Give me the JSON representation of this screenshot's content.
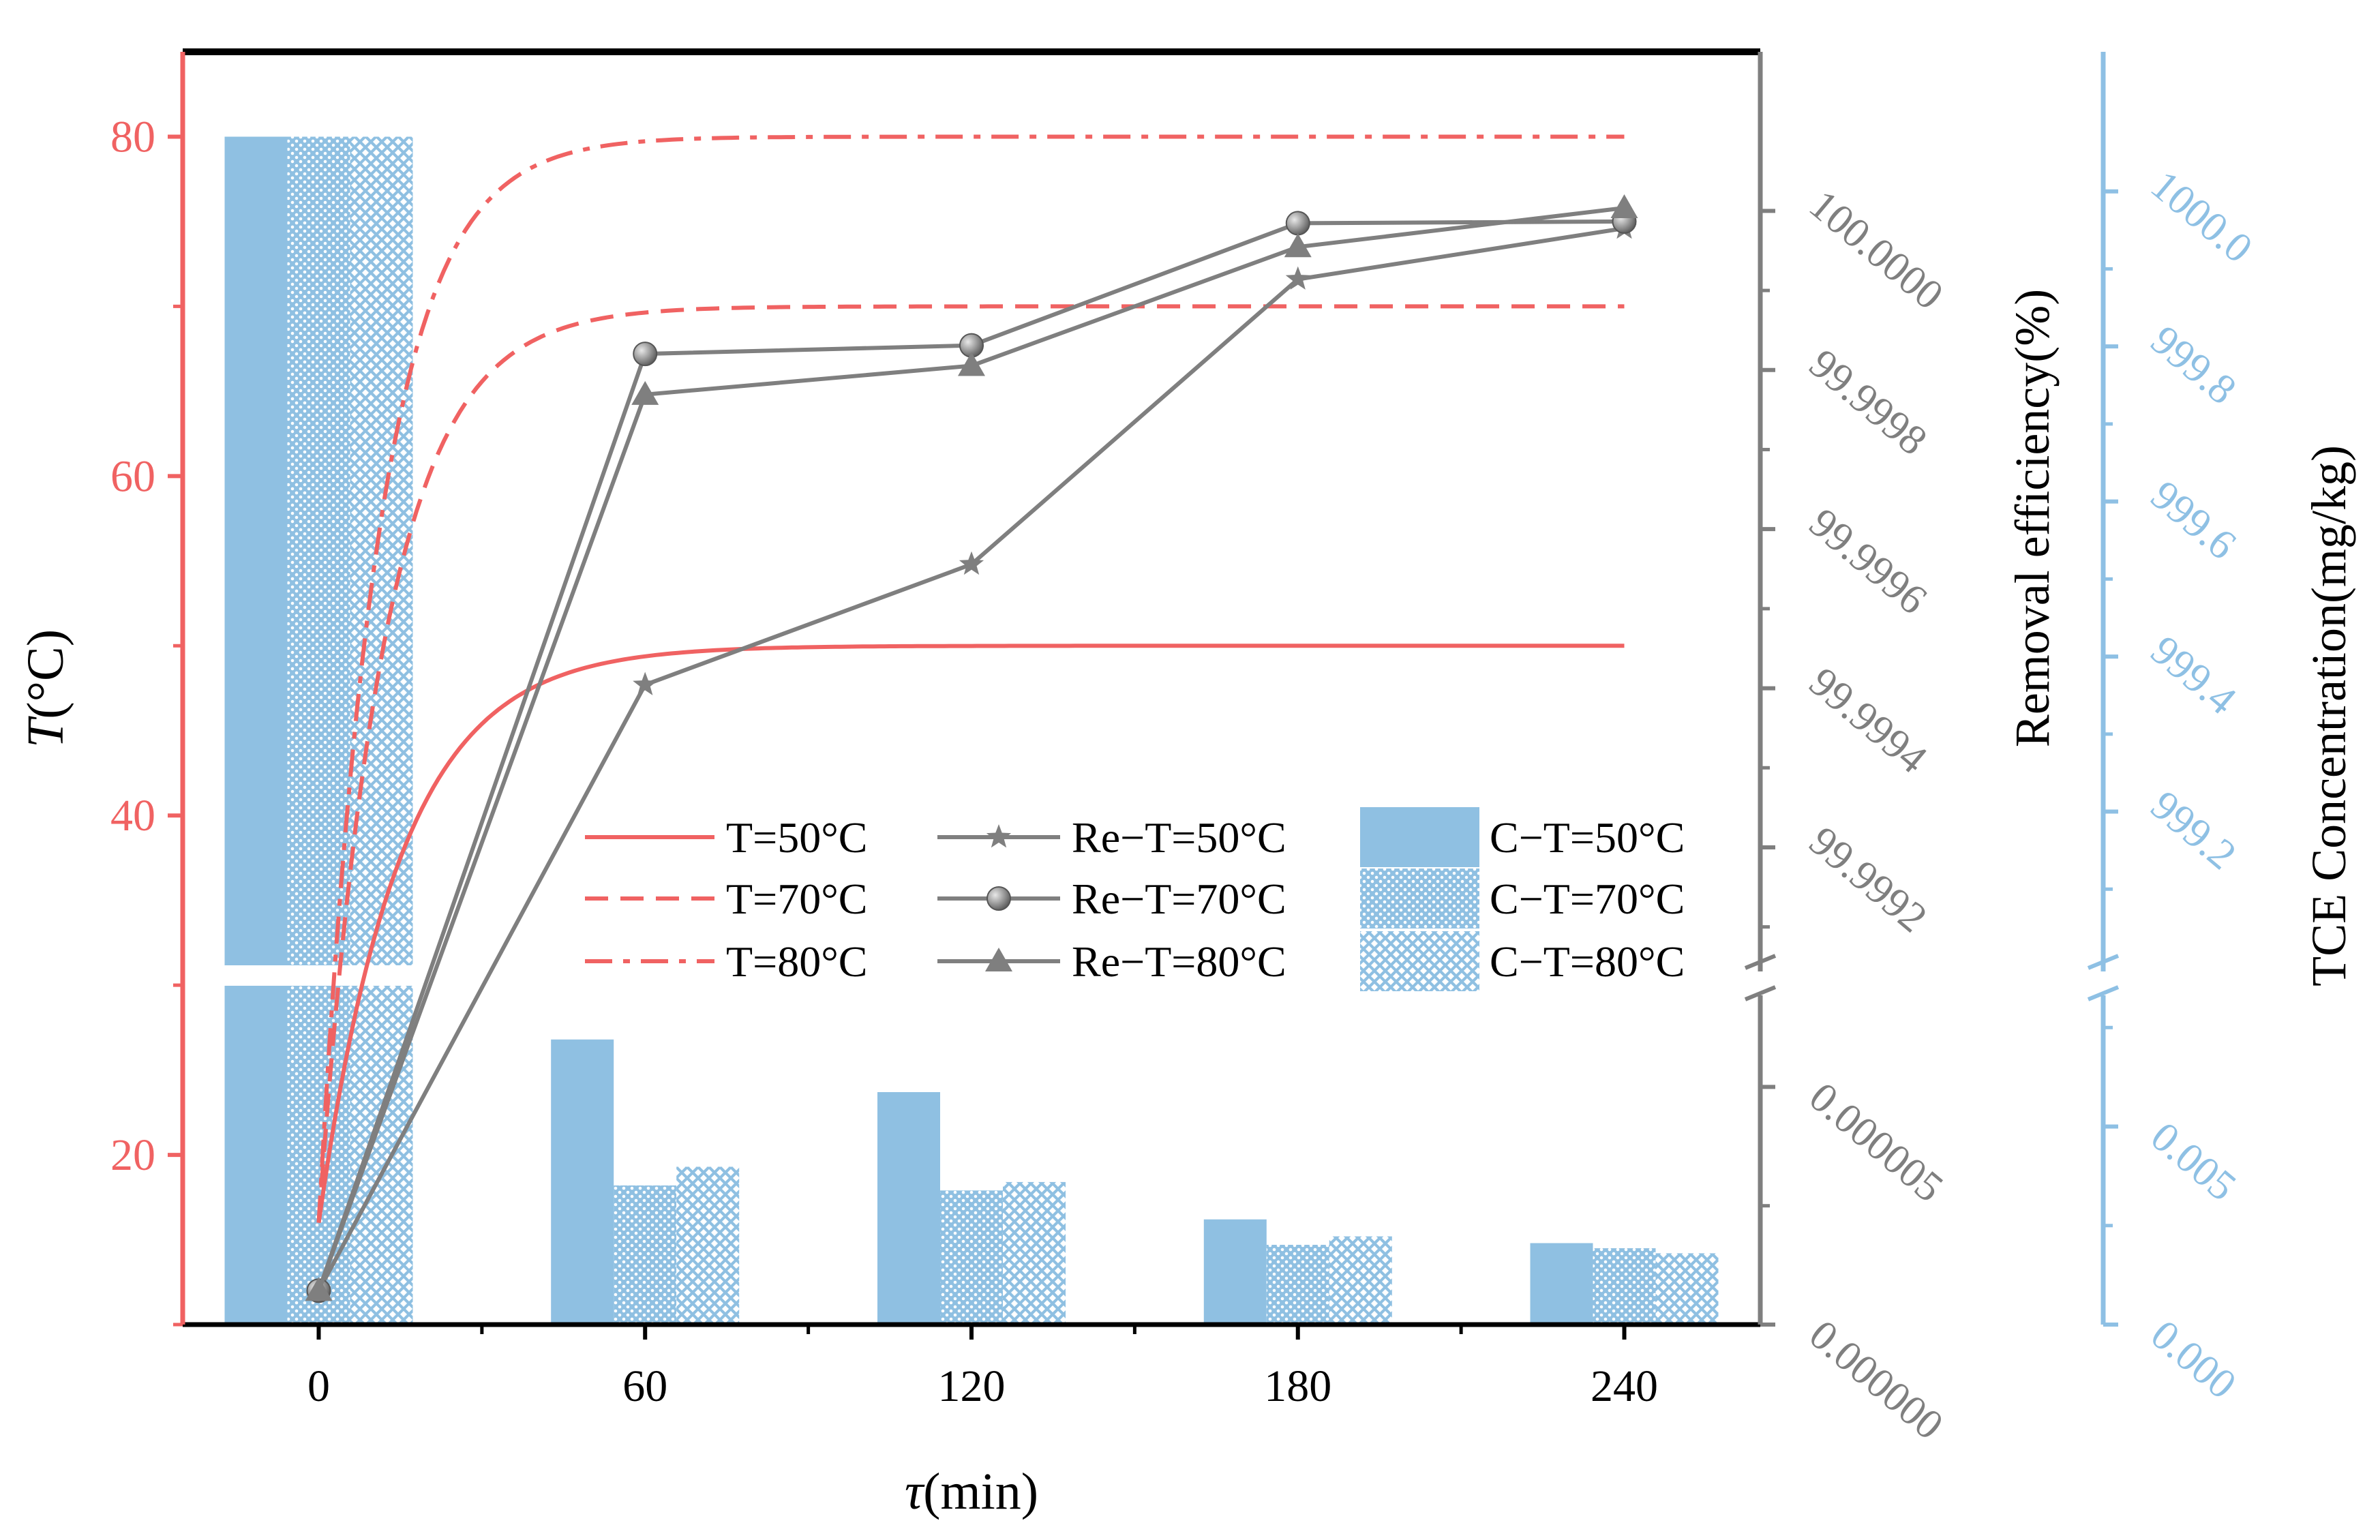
{
  "colors": {
    "red": "#f06262",
    "gray": "#7f7f7f",
    "blue": "#8ec0e4",
    "bar_blue": "#8fc0e2",
    "black": "#000000"
  },
  "chart_data": {
    "type": "line+bar (broken multi-axis)",
    "xlabel_italic": "τ",
    "xlabel_unit": "(min)",
    "xlim": [
      -25,
      265
    ],
    "x_ticks": [
      0,
      60,
      120,
      180,
      240
    ],
    "x_tick_labels": [
      "0",
      "60",
      "120",
      "180",
      "240"
    ],
    "left_axis": {
      "label_italic": "T",
      "label_unit": "(°C)",
      "lim": [
        10,
        85
      ],
      "ticks": [
        20,
        40,
        60,
        80
      ],
      "tick_labels": [
        "20",
        "40",
        "60",
        "80"
      ]
    },
    "right_axis_1": {
      "label": "Removal efficiency(%)",
      "upper_ticks": [
        99.9992,
        99.9994,
        99.9996,
        99.9998,
        100.0
      ],
      "upper_tick_labels": [
        "99.9992",
        "99.9994",
        "99.9996",
        "99.9998",
        "100.0000"
      ],
      "upper_range": [
        99.99905,
        100.0002
      ],
      "lower_ticks": [
        0.0,
        5e-06
      ],
      "lower_tick_labels": [
        "0.000000",
        "0.000005"
      ],
      "lower_range": [
        0.0,
        7e-06
      ]
    },
    "right_axis_2": {
      "label": "TCE Concentration(mg/kg)",
      "upper_ticks": [
        999.2,
        999.4,
        999.6,
        999.8,
        1000.0
      ],
      "upper_tick_labels": [
        "999.2",
        "999.4",
        "999.6",
        "999.8",
        "1000.0"
      ],
      "upper_range": [
        999.0,
        1000.18
      ],
      "lower_ticks": [
        0.0,
        0.005
      ],
      "lower_tick_labels": [
        "0.000",
        "0.005"
      ],
      "lower_range": [
        0.0,
        0.0084
      ]
    },
    "temperature_series": [
      {
        "name": "T=50°C",
        "style": "solid",
        "start": 16,
        "plateau": 50,
        "tau": 15
      },
      {
        "name": "T=70°C",
        "style": "dash",
        "start": 16,
        "plateau": 70,
        "tau": 12
      },
      {
        "name": "T=80°C",
        "style": "dashdot",
        "start": 16,
        "plateau": 80,
        "tau": 11
      }
    ],
    "removal_series": [
      {
        "name": "Re−T=50°C",
        "marker": "star",
        "x": [
          0,
          60,
          120,
          180,
          240
        ],
        "y_left_equiv": [
          12,
          47.7,
          54.8,
          71.6,
          74.6
        ]
      },
      {
        "name": "Re−T=70°C",
        "marker": "circle",
        "x": [
          0,
          60,
          120,
          180,
          240
        ],
        "y_left_equiv": [
          12,
          67.2,
          67.7,
          74.9,
          75.0
        ]
      },
      {
        "name": "Re−T=80°C",
        "marker": "triangle",
        "x": [
          0,
          60,
          120,
          180,
          240
        ],
        "y_left_equiv": [
          12,
          64.8,
          66.5,
          73.5,
          75.8
        ]
      }
    ],
    "concentration_bars": [
      {
        "name": "C−T=50°C",
        "pattern": "solid",
        "x": [
          0,
          60,
          120,
          180,
          240
        ],
        "y_left_equiv": [
          80,
          26.8,
          23.7,
          16.2,
          14.8
        ]
      },
      {
        "name": "C−T=70°C",
        "pattern": "dots",
        "x": [
          0,
          60,
          120,
          180,
          240
        ],
        "y_left_equiv": [
          80,
          18.2,
          17.9,
          14.7,
          14.5
        ]
      },
      {
        "name": "C−T=80°C",
        "pattern": "crosshatch",
        "x": [
          0,
          60,
          120,
          180,
          240
        ],
        "y_left_equiv": [
          80,
          19.3,
          18.4,
          15.2,
          14.2
        ]
      }
    ]
  }
}
